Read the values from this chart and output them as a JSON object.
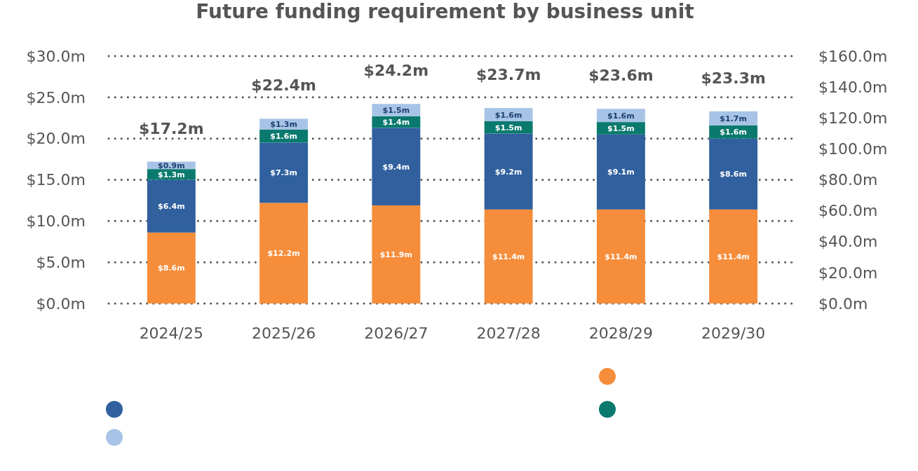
{
  "chart_data": {
    "type": "bar",
    "title": "Future funding requirement by business unit",
    "categories": [
      "2024/25",
      "2025/26",
      "2026/27",
      "2027/28",
      "2028/29",
      "2029/30"
    ],
    "stacked": true,
    "series": [
      {
        "color": "#f58d3b",
        "values": [
          8.6,
          12.2,
          11.9,
          11.4,
          11.4,
          11.4
        ],
        "value_labels": [
          "$8.6m",
          "$12.2m",
          "$11.9m",
          "$11.4m",
          "$11.4m",
          "$11.4m"
        ]
      },
      {
        "color": "#30609e",
        "values": [
          6.4,
          7.3,
          9.4,
          9.2,
          9.1,
          8.6
        ],
        "value_labels": [
          "$6.4m",
          "$7.3m",
          "$9.4m",
          "$9.2m",
          "$9.1m",
          "$8.6m"
        ]
      },
      {
        "color": "#0b7a6e",
        "values": [
          1.3,
          1.6,
          1.4,
          1.5,
          1.5,
          1.6
        ],
        "value_labels": [
          "$1.3m",
          "$1.6m",
          "$1.4m",
          "$1.5m",
          "$1.5m",
          "$1.6m"
        ]
      },
      {
        "color": "#a7c4e6",
        "values": [
          0.9,
          1.3,
          1.5,
          1.6,
          1.6,
          1.7
        ],
        "value_labels": [
          "$0.9m",
          "$1.3m",
          "$1.5m",
          "$1.6m",
          "$1.6m",
          "$1.7m"
        ]
      }
    ],
    "totals": [
      "$17.2m",
      "$22.4m",
      "$24.2m",
      "$23.7m",
      "$23.6m",
      "$23.3m"
    ],
    "ylim": [
      0,
      30
    ],
    "yticks": [
      {
        "value": 0,
        "label": "$0.0m"
      },
      {
        "value": 5,
        "label": "$5.0m"
      },
      {
        "value": 10,
        "label": "$10.0m"
      },
      {
        "value": 15,
        "label": "$15.0m"
      },
      {
        "value": 20,
        "label": "$20.0m"
      },
      {
        "value": 25,
        "label": "$25.0m"
      },
      {
        "value": 30,
        "label": "$30.0m"
      }
    ],
    "y2lim": [
      0,
      160
    ],
    "y2ticks": [
      {
        "value": 0,
        "label": "$0.0m"
      },
      {
        "value": 20,
        "label": "$20.0m"
      },
      {
        "value": 40,
        "label": "$40.0m"
      },
      {
        "value": 60,
        "label": "$60.0m"
      },
      {
        "value": 80,
        "label": "$80.0m"
      },
      {
        "value": 100,
        "label": "$100.0m"
      },
      {
        "value": 120,
        "label": "$120.0m"
      },
      {
        "value": 140,
        "label": "$140.0m"
      },
      {
        "value": 160,
        "label": "$160.0m"
      }
    ],
    "grid": "y"
  }
}
